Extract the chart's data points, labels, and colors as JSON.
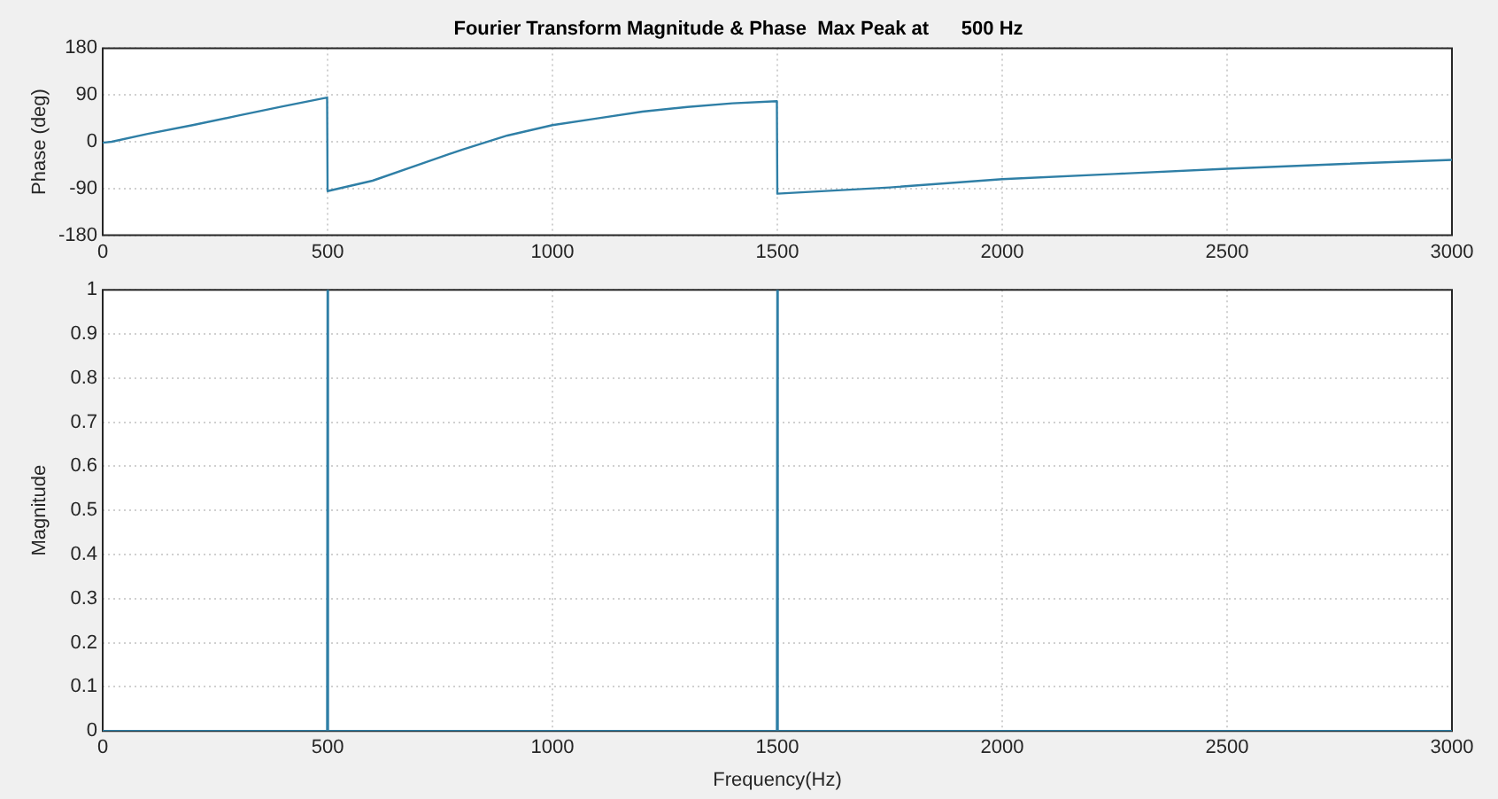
{
  "chart_data": [
    {
      "type": "line",
      "title": "Fourier Transform Magnitude & Phase  Max Peak at      500 Hz",
      "ylabel": "Phase (deg)",
      "x": [
        0,
        20,
        100,
        200,
        300,
        400,
        499,
        500,
        600,
        700,
        800,
        900,
        1000,
        1100,
        1200,
        1300,
        1400,
        1499,
        1500,
        1750,
        2000,
        2250,
        2500,
        2750,
        3000
      ],
      "values": [
        -2,
        0,
        15,
        32,
        50,
        68,
        85,
        -95,
        -75,
        -45,
        -15,
        12,
        32,
        45,
        58,
        67,
        74,
        78,
        -100,
        -88,
        -72,
        -62,
        -52,
        -43,
        -35
      ],
      "color": "#2f7fa6",
      "xlim": [
        0,
        3000
      ],
      "xticks": [
        0,
        500,
        1000,
        1500,
        2000,
        2500,
        3000
      ],
      "ylim": [
        -180,
        180
      ],
      "yticks": [
        -180,
        -90,
        0,
        90,
        180
      ],
      "grid": true
    },
    {
      "type": "line",
      "xlabel": "Frequency(Hz)",
      "ylabel": "Magnitude",
      "x": [
        0,
        499,
        500,
        501,
        1499,
        1500,
        1501,
        3000
      ],
      "values": [
        0,
        0,
        1,
        0,
        0,
        1,
        0,
        0
      ],
      "color": "#2f7fa6",
      "xlim": [
        0,
        3000
      ],
      "xticks": [
        0,
        500,
        1000,
        1500,
        2000,
        2500,
        3000
      ],
      "ylim": [
        0,
        1
      ],
      "yticks": [
        0,
        0.1,
        0.2,
        0.3,
        0.4,
        0.5,
        0.6,
        0.7,
        0.8,
        0.9,
        1
      ],
      "grid": true
    }
  ]
}
